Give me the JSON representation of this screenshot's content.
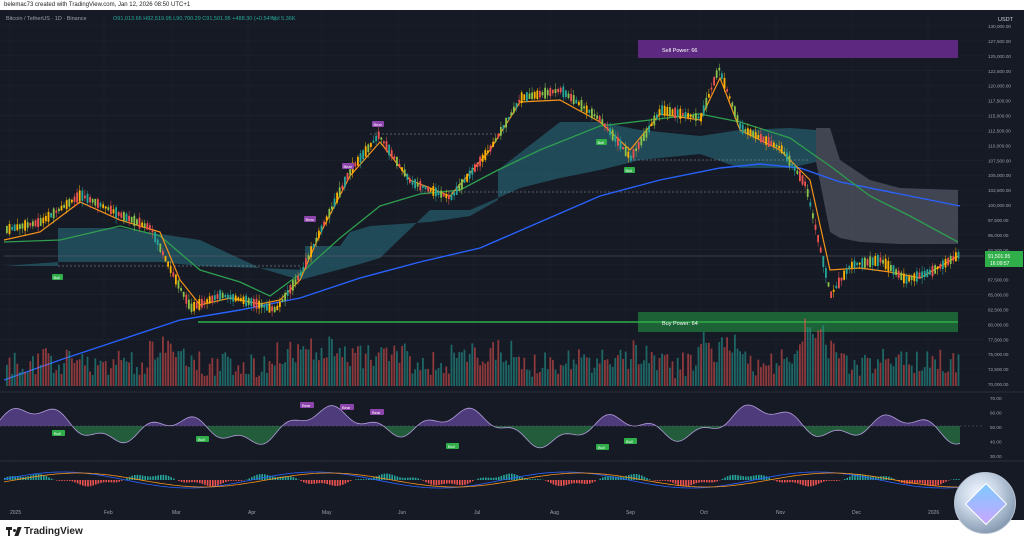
{
  "header": {
    "text": "belemac73 created with TradingView.com, Jan 12, 2026 08:50 UTC+1"
  },
  "chart_header": {
    "symbol": "Bitcoin / TetherUS · 1D · Binance",
    "ohlc": "O91,013.66  H92,519.95  L90,700.29  C91,501.95  +488.30 (+0.54%)",
    "vol": "Vol 5.36K"
  },
  "price_axis": {
    "currency": "USDT",
    "ticks": [
      "130,000.00",
      "127,500.00",
      "125,000.00",
      "122,500.00",
      "120,000.00",
      "117,500.00",
      "115,000.00",
      "112,500.00",
      "110,000.00",
      "107,500.00",
      "105,000.00",
      "102,500.00",
      "100,000.00",
      "97,500.00",
      "95,000.00",
      "92,500.00",
      "90,000.00",
      "87,500.00",
      "85,000.00",
      "82,500.00",
      "80,000.00",
      "77,500.00",
      "75,000.00",
      "72,500.00",
      "70,000.00"
    ],
    "last_price": "91,501.95",
    "countdown": "16:09:57"
  },
  "rsi_axis": {
    "ticks": [
      "70.00",
      "60.00",
      "50.00",
      "40.00",
      "30.00"
    ]
  },
  "time_axis": {
    "labels": [
      "2025",
      "Feb",
      "Mar",
      "Apr",
      "May",
      "Jun",
      "Jul",
      "Aug",
      "Sep",
      "Oct",
      "Nov",
      "Dec",
      "2026"
    ]
  },
  "annotations": {
    "sell_power": "Sell Power: 66",
    "buy_power": "Buy Power: 64",
    "bear": "Bear",
    "bull": "Bull"
  },
  "footer": {
    "logo_text": "TradingView"
  },
  "colors": {
    "background": "#161a25",
    "grid": "#1f2431",
    "up": "#26a69a",
    "down": "#ef5350",
    "ema_orange": "#f7931a",
    "ema_green": "#2e9e4f",
    "sma_blue": "#2962ff",
    "cloud": "#2a6b7c",
    "sell_zone": "#6a2c8f",
    "buy_zone": "#1f6f3a",
    "label_bg": "#2fae4a"
  },
  "chart_data": {
    "type": "line",
    "title": "",
    "x": [
      "2025",
      "Feb",
      "Mar",
      "Apr",
      "May",
      "Jun",
      "Jul",
      "Aug",
      "Sep",
      "Oct",
      "Nov",
      "Dec",
      "2026"
    ],
    "ylim": [
      70000,
      130000
    ],
    "series": [
      {
        "values": [
          96000,
          101000,
          86000,
          83000,
          94500,
          105000,
          108000,
          118000,
          110000,
          121000,
          110000,
          90000,
          91500
        ]
      }
    ]
  }
}
